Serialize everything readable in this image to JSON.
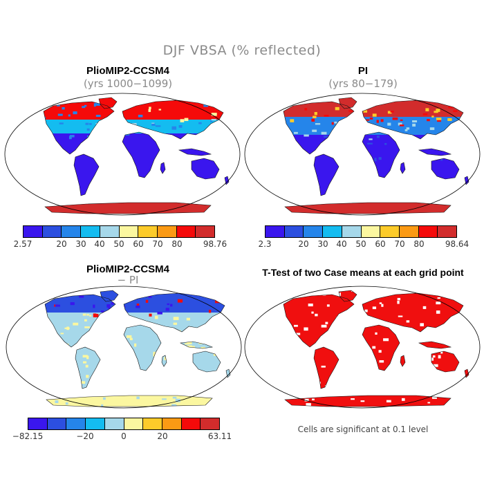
{
  "title": "DJF VBSA (% reflected)",
  "colors": [
    "#3a16ee",
    "#2c4fe0",
    "#2585ea",
    "#14bcf0",
    "#a6d8ea",
    "#fbf7a0",
    "#fccb2a",
    "#fb9a14",
    "#f50a0a",
    "#d22c2c"
  ],
  "panels": {
    "top_left": {
      "title": "PlioMIP2-CCSM4",
      "subtitle": "(yrs 1000−1099)",
      "colorbar": {
        "min_label": "2.57",
        "max_label": "98.76",
        "ticks": [
          "20",
          "30",
          "40",
          "50",
          "60",
          "70",
          "80"
        ]
      }
    },
    "top_right": {
      "title": "PI",
      "subtitle": "(yrs 80−179)",
      "colorbar": {
        "min_label": "2.3",
        "max_label": "98.64",
        "ticks": [
          "20",
          "30",
          "40",
          "50",
          "60",
          "70",
          "80"
        ]
      }
    },
    "bottom_left": {
      "title": "PlioMIP2-CCSM4",
      "subtitle": "− PI",
      "colorbar": {
        "min_label": "−82.15",
        "max_label": "63.11",
        "ticks": [
          "−20",
          "0",
          "20"
        ]
      }
    },
    "bottom_right": {
      "title": "T-Test of two Case means at each grid point",
      "note": "Cells are significant at 0.1 level"
    }
  }
}
